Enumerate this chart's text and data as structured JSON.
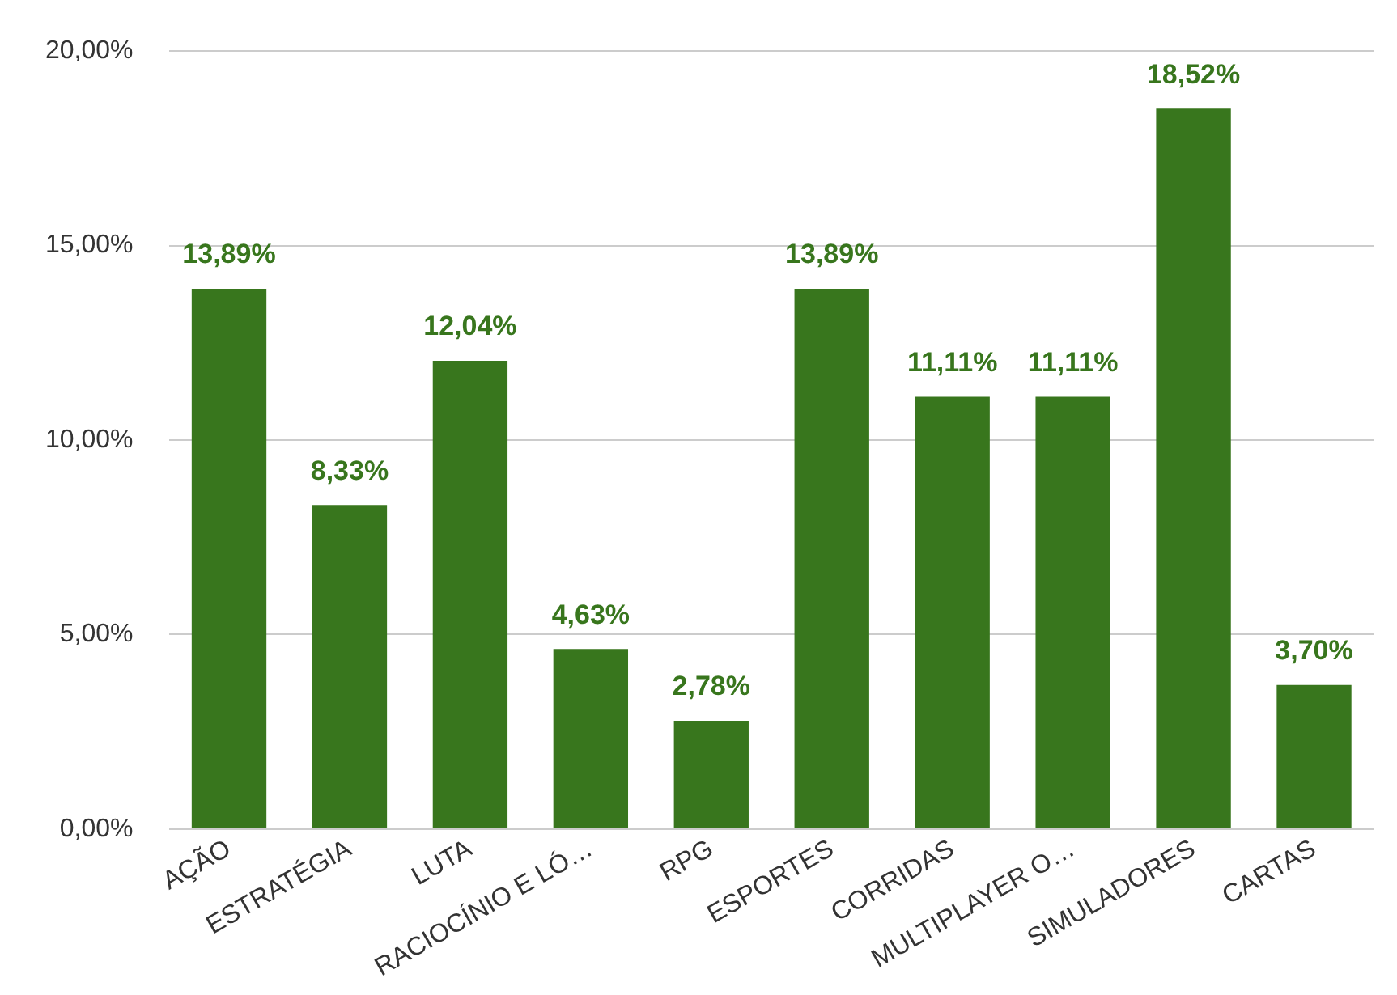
{
  "chart_data": {
    "type": "bar",
    "categories": [
      "AÇÃO",
      "ESTRATÉGIA",
      "LUTA",
      "RACIOCÍNIO E LÓ…",
      "RPG",
      "ESPORTES",
      "CORRIDAS",
      "MULTIPLAYER O…",
      "SIMULADORES",
      "CARTAS"
    ],
    "values": [
      13.89,
      8.33,
      12.04,
      4.63,
      2.78,
      13.89,
      11.11,
      11.11,
      18.52,
      3.7
    ],
    "value_labels": [
      "13,89%",
      "8,33%",
      "12,04%",
      "4,63%",
      "2,78%",
      "13,89%",
      "11,11%",
      "11,11%",
      "18,52%",
      "3,70%"
    ],
    "color": "#38761d",
    "ylim": [
      0,
      20
    ],
    "yticks": [
      {
        "value": 0,
        "label": "0,00%"
      },
      {
        "value": 5,
        "label": "5,00%"
      },
      {
        "value": 10,
        "label": "10,00%"
      },
      {
        "value": 15,
        "label": "15,00%"
      },
      {
        "value": 20,
        "label": "20,00%"
      }
    ],
    "grid": "y"
  }
}
